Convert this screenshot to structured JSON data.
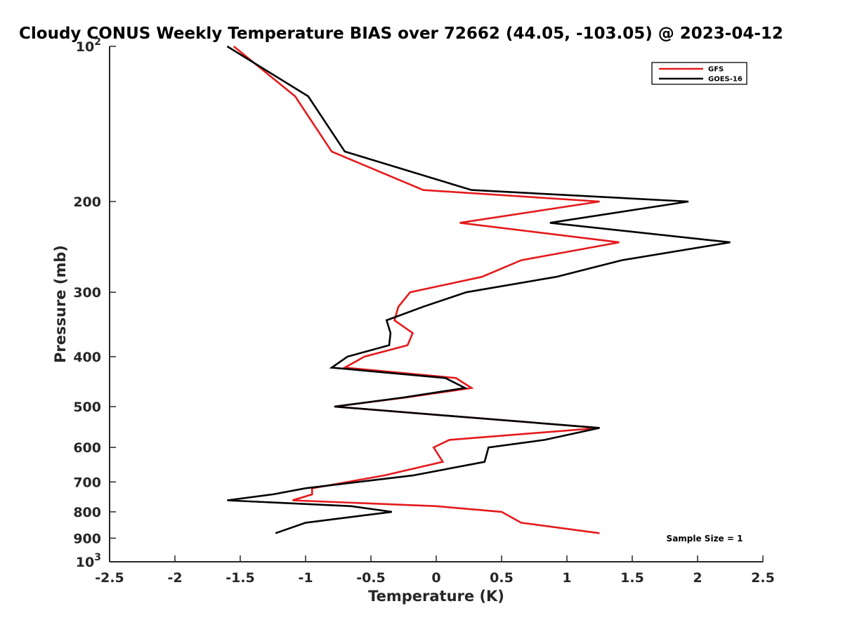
{
  "chart_data": {
    "type": "line",
    "title": "Cloudy CONUS Weekly Temperature BIAS over 72662 (44.05, -103.05) @ 2023-04-12",
    "xlabel": "Temperature (K)",
    "ylabel": "Pressure (mb)",
    "xlim": [
      -2.5,
      2.5
    ],
    "ylim": [
      100,
      1000
    ],
    "y_scale": "log",
    "y_reversed": true,
    "grid": false,
    "legend_position": "top-right",
    "x_ticks": [
      -2.5,
      -2,
      -1.5,
      -1,
      -0.5,
      0,
      0.5,
      1,
      1.5,
      2,
      2.5
    ],
    "x_tick_labels": [
      "-2.5",
      "-2",
      "-1.5",
      "-1",
      "-0.5",
      "0",
      "0.5",
      "1",
      "1.5",
      "2",
      "2.5"
    ],
    "y_ticks": [
      100,
      200,
      300,
      400,
      500,
      600,
      700,
      800,
      900,
      1000
    ],
    "y_tick_labels": [
      {
        "base": "10",
        "exp": "2"
      },
      {
        "base": "200",
        "exp": ""
      },
      {
        "base": "300",
        "exp": ""
      },
      {
        "base": "400",
        "exp": ""
      },
      {
        "base": "500",
        "exp": ""
      },
      {
        "base": "600",
        "exp": ""
      },
      {
        "base": "700",
        "exp": ""
      },
      {
        "base": "800",
        "exp": ""
      },
      {
        "base": "900",
        "exp": ""
      },
      {
        "base": "10",
        "exp": "3"
      }
    ],
    "annotation": "Sample Size = 1",
    "series": [
      {
        "name": "GFS",
        "color": "#e41a1c",
        "points": [
          [
            -1.55,
            100
          ],
          [
            -1.08,
            125
          ],
          [
            -0.8,
            160
          ],
          [
            -0.1,
            190
          ],
          [
            1.25,
            200
          ],
          [
            0.18,
            220
          ],
          [
            1.4,
            240
          ],
          [
            0.65,
            260
          ],
          [
            0.35,
            280
          ],
          [
            -0.2,
            300
          ],
          [
            -0.29,
            320
          ],
          [
            -0.32,
            340
          ],
          [
            -0.18,
            360
          ],
          [
            -0.22,
            380
          ],
          [
            -0.55,
            400
          ],
          [
            -0.7,
            420
          ],
          [
            0.15,
            440
          ],
          [
            0.27,
            460
          ],
          [
            -0.23,
            480
          ],
          [
            -0.78,
            500
          ],
          [
            1.25,
            550
          ],
          [
            0.1,
            580
          ],
          [
            -0.02,
            600
          ],
          [
            0.05,
            640
          ],
          [
            -0.4,
            680
          ],
          [
            -0.95,
            720
          ],
          [
            -0.95,
            740
          ],
          [
            -1.1,
            760
          ],
          [
            0.0,
            780
          ],
          [
            0.5,
            800
          ],
          [
            0.65,
            840
          ],
          [
            1.25,
            880
          ]
        ]
      },
      {
        "name": "GOES-16",
        "color": "#000000",
        "points": [
          [
            -1.6,
            100
          ],
          [
            -0.98,
            125
          ],
          [
            -0.7,
            160
          ],
          [
            0.27,
            190
          ],
          [
            1.93,
            200
          ],
          [
            0.87,
            220
          ],
          [
            2.25,
            240
          ],
          [
            1.42,
            260
          ],
          [
            0.92,
            280
          ],
          [
            0.23,
            300
          ],
          [
            -0.1,
            320
          ],
          [
            -0.38,
            340
          ],
          [
            -0.35,
            360
          ],
          [
            -0.36,
            380
          ],
          [
            -0.68,
            400
          ],
          [
            -0.8,
            420
          ],
          [
            0.07,
            440
          ],
          [
            0.22,
            460
          ],
          [
            -0.25,
            480
          ],
          [
            -0.78,
            500
          ],
          [
            1.25,
            550
          ],
          [
            0.83,
            580
          ],
          [
            0.4,
            600
          ],
          [
            0.37,
            640
          ],
          [
            -0.18,
            680
          ],
          [
            -1.0,
            720
          ],
          [
            -1.25,
            740
          ],
          [
            -1.6,
            760
          ],
          [
            -0.65,
            780
          ],
          [
            -0.34,
            800
          ],
          [
            -1.0,
            840
          ],
          [
            -1.23,
            880
          ]
        ]
      }
    ]
  }
}
